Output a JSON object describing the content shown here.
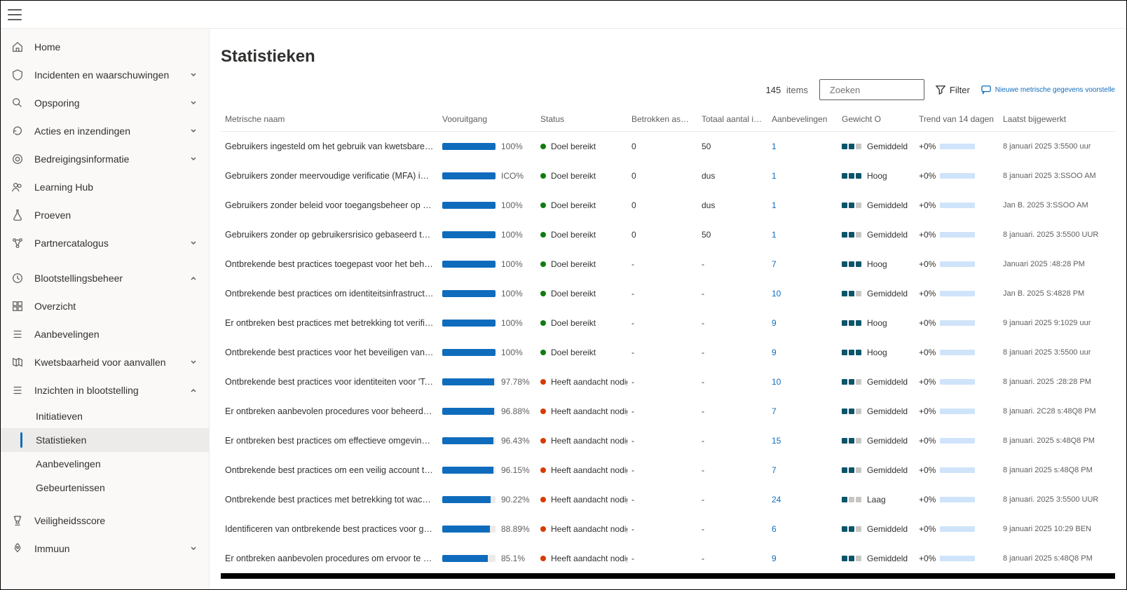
{
  "colors": {
    "accent": "#0f6cbd",
    "status_ok": "#107c10",
    "status_warn": "#d83b01",
    "weight_on": "#0b556a",
    "weight_off": "#c8c6c4",
    "trend_fill": "#cfe4fa"
  },
  "page": {
    "title": "Statistieken",
    "item_count": "145",
    "item_count_label": "items",
    "search_placeholder": "Zoeken",
    "filter_label": "Filter",
    "suggest_label": "Nieuwe metrische gegevens voorstelle"
  },
  "nav": [
    {
      "icon": "home",
      "label": "Home",
      "chev": null
    },
    {
      "icon": "shield",
      "label": "Incidenten en waarschuwingen",
      "chev": "down"
    },
    {
      "icon": "search",
      "label": "Opsporing",
      "chev": "down"
    },
    {
      "icon": "action",
      "label": "Acties en inzendingen",
      "chev": "down"
    },
    {
      "icon": "threat",
      "label": "Bedreigingsinformatie",
      "chev": "down"
    },
    {
      "icon": "people",
      "label": "Learning Hub",
      "chev": null
    },
    {
      "icon": "flask",
      "label": "Proeven",
      "chev": null
    },
    {
      "icon": "nodes",
      "label": "Partnercatalogus",
      "chev": "down"
    },
    {
      "icon": "clock",
      "label": "Blootstellingsbeheer",
      "chev": "up"
    },
    {
      "icon": "grid",
      "label": "Overzicht",
      "chev": null
    },
    {
      "icon": "list",
      "label": "Aanbevelingen",
      "chev": null
    },
    {
      "icon": "map",
      "label": "Kwetsbaarheid voor aanvallen",
      "chev": "down"
    },
    {
      "icon": "list",
      "label": "Inzichten in blootstelling",
      "chev": "up",
      "subs": [
        {
          "label": "Initiatieven",
          "active": false
        },
        {
          "label": "Statistieken",
          "active": true
        },
        {
          "label": "Aanbevelingen",
          "active": false
        },
        {
          "label": "Gebeurtenissen",
          "active": false
        }
      ]
    },
    {
      "icon": "trophy",
      "label": "Veiligheidsscore",
      "chev": null
    },
    {
      "icon": "rocket",
      "label": "Immuun",
      "chev": "down"
    }
  ],
  "columns": [
    "Metrische naam",
    "Vooruitgang",
    "Status",
    "Betrokken assets Cj",
    "Totaal aantal items",
    "Aanbevelingen",
    "Gewicht O",
    "Trend van 14 dagen",
    "Laatst bijgewerkt"
  ],
  "col_widths": [
    "310px",
    "140px",
    "130px",
    "100px",
    "100px",
    "100px",
    "110px",
    "120px",
    "auto"
  ],
  "weights": {
    "Laag": 1,
    "Gemiddeld": 2,
    "Hoog": 3
  },
  "status_labels": {
    "ok": "Doel bereikt",
    "warn": "Heeft aandacht nodig"
  },
  "rows": [
    {
      "name": "Gebruikers ingesteld om het gebruik van kwetsbare verouderde protocollen toe te staan",
      "pct": 100,
      "pct_txt": "100%",
      "status": "ok",
      "assets": "0",
      "total": "50",
      "rec": "1",
      "weight": "Gemiddeld",
      "trend": "+0%",
      "updated": "8 januari 2025 3:5500 uur"
    },
    {
      "name": "Gebruikers zonder meervoudige verificatie (MFA) ingeschakeld",
      "pct": 100,
      "pct_txt": "ICO%",
      "status": "ok",
      "assets": "0",
      "total": "dus",
      "rec": "1",
      "weight": "Hoog",
      "trend": "+0%",
      "updated": "8 januari 2025 3:SSOO AM"
    },
    {
      "name": "Gebruikers zonder beleid voor toegangsbeheer op basis van aanmeldingsrisico's",
      "pct": 100,
      "pct_txt": "100%",
      "status": "ok",
      "assets": "0",
      "total": "dus",
      "rec": "1",
      "weight": "Gemiddeld",
      "trend": "+0%",
      "updated": "Jan B. 2025 3:SSOO AM"
    },
    {
      "name": "Gebruikers zonder op gebruikersrisico gebaseerd toegangsbeheerbeleid",
      "pct": 100,
      "pct_txt": "100%",
      "status": "ok",
      "assets": "0",
      "total": "50",
      "rec": "1",
      "weight": "Gemiddeld",
      "trend": "+0%",
      "updated": "8 januari. 2025 3:5500 UUR"
    },
    {
      "name": "Ontbrekende best practices toegepast voor het beheren van identiteiten...",
      "pct": 100,
      "pct_txt": "100%",
      "status": "ok",
      "assets": "-",
      "total": "-",
      "rec": "7",
      "weight": "Hoog",
      "trend": "+0%",
      "updated": "Januari 2025 :48:28 PM"
    },
    {
      "name": "Ontbrekende best practices om identiteitsinfrastructuur I te garanderen",
      "pct": 100,
      "pct_txt": "100%",
      "status": "ok",
      "assets": "-",
      "total": "-",
      "rec": "10",
      "weight": "Gemiddeld",
      "trend": "+0%",
      "updated": "Jan B. 2025 S:4828 PM"
    },
    {
      "name": "Er ontbreken best practices met betrekking tot verificatie voor SaaS...",
      "pct": 100,
      "pct_txt": "100%",
      "status": "ok",
      "assets": "-",
      "total": "-",
      "rec": "9",
      "weight": "Hoog",
      "trend": "+0%",
      "updated": "9 januari 2025 9:1029 uur"
    },
    {
      "name": "Ontbrekende best practices voor het beveiligen van bevoegde toegang in Zee",
      "pct": 100,
      "pct_txt": "100%",
      "status": "ok",
      "assets": "-",
      "total": "-",
      "rec": "9",
      "weight": "Hoog",
      "trend": "+0%",
      "updated": "8 januari 2025 3:5500 uur"
    },
    {
      "name": "Ontbrekende best practices voor identiteiten voor 'Techniek ...",
      "pct": 97.78,
      "pct_txt": "97.78%",
      "status": "warn",
      "assets": "-",
      "total": "-",
      "rec": "10",
      "weight": "Gemiddeld",
      "trend": "+0%",
      "updated": "8 januari. 2025 :28:28 PM"
    },
    {
      "name": "Er ontbreken aanbevolen procedures voor beheerdersaccounts om een...",
      "pct": 96.88,
      "pct_txt": "96.88%",
      "status": "warn",
      "assets": "-",
      "total": "-",
      "rec": "7",
      "weight": "Gemiddeld",
      "trend": "+0%",
      "updated": "8 januari. 2C28 s:48Q8 PM"
    },
    {
      "name": "Er ontbreken best practices om effectieve omgevingsoverschrijdende...",
      "pct": 96.43,
      "pct_txt": "96.43%",
      "status": "warn",
      "assets": "-",
      "total": "-",
      "rec": "15",
      "weight": "Gemiddeld",
      "trend": "+0%",
      "updated": "8 januari. 2025 s:48Q8 PM"
    },
    {
      "name": "Ontbrekende best practices om een veilig account te configureren",
      "pct": 96.15,
      "pct_txt": "96.15%",
      "status": "warn",
      "assets": "-",
      "total": "-",
      "rec": "7",
      "weight": "Gemiddeld",
      "trend": "+0%",
      "updated": "8 januari 2025 s:48Q8 PM"
    },
    {
      "name": "Ontbrekende best practices met betrekking tot wachtwoordconfiguratie",
      "pct": 90.22,
      "pct_txt": "90.22%",
      "status": "warn",
      "assets": "-",
      "total": "-",
      "rec": "24",
      "weight": "Laag",
      "trend": "+0%",
      "updated": "8 januari. 2025 3:5500 UUR"
    },
    {
      "name": "Identificeren van ontbrekende best practices voor gevoelige bedrijfsgegevens",
      "pct": 88.89,
      "pct_txt": "88.89%",
      "status": "warn",
      "assets": "-",
      "total": "-",
      "rec": "6",
      "weight": "Gemiddeld",
      "trend": "+0%",
      "updated": "9 januari 2025 10:29 BEN"
    },
    {
      "name": "Er ontbreken aanbevolen procedures om ervoor te zorgen dat identiteiten toegang hebben tot...",
      "pct": 85.1,
      "pct_txt": "85.1%",
      "status": "warn",
      "assets": "-",
      "total": "-",
      "rec": "9",
      "weight": "Gemiddeld",
      "trend": "+0%",
      "updated": "8 januari 2025 s:48Q8 PM"
    }
  ]
}
